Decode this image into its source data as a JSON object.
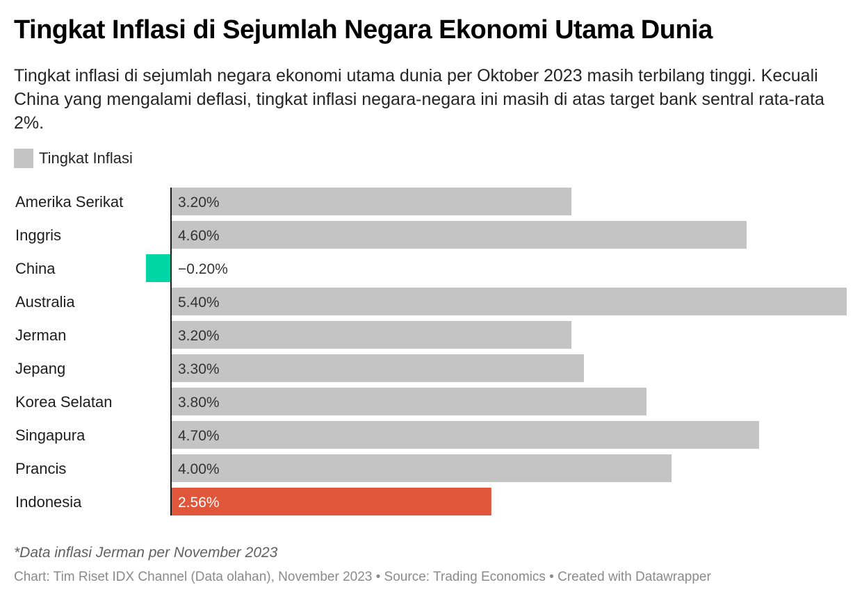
{
  "header": {
    "title": "Tingkat Inflasi di Sejumlah Negara Ekonomi Utama Dunia",
    "description": "Tingkat inflasi di sejumlah negara ekonomi utama dunia per Oktober 2023 masih terbilang tinggi. Kecuali China yang mengalami deflasi, tingkat inflasi negara-negara ini masih di atas target bank sentral rata-rata 2%."
  },
  "legend": {
    "label": "Tingkat Inflasi",
    "color": "#c4c4c4"
  },
  "chart_data": {
    "type": "bar",
    "orientation": "horizontal",
    "title": "Tingkat Inflasi di Sejumlah Negara Ekonomi Utama Dunia",
    "xlabel": "",
    "ylabel": "",
    "xlim": [
      -0.2,
      5.4
    ],
    "grid": false,
    "legend": "top-left",
    "legend_entries": [
      "Tingkat Inflasi"
    ],
    "categories": [
      "Amerika Serikat",
      "Inggris",
      "China",
      "Australia",
      "Jerman",
      "Jepang",
      "Korea Selatan",
      "Singapura",
      "Prancis",
      "Indonesia"
    ],
    "series": [
      {
        "name": "Tingkat Inflasi",
        "values": [
          3.2,
          4.6,
          -0.2,
          5.4,
          3.2,
          3.3,
          3.8,
          4.7,
          4.0,
          2.56
        ],
        "labels": [
          "3.20%",
          "4.60%",
          "−0.20%",
          "5.40%",
          "3.20%",
          "3.30%",
          "3.80%",
          "4.70%",
          "4.00%",
          "2.56%"
        ]
      }
    ],
    "colors": {
      "default": "#c4c4c4",
      "negative": "#00d5a5",
      "highlight": "#e0563a",
      "axis": "#1a1a1a",
      "label_dark": "#333333",
      "label_light": "#ffffff"
    },
    "highlight_category": "Indonesia"
  },
  "notes": {
    "note": "*Data inflasi Jerman per November 2023",
    "footer": "Chart: Tim Riset IDX Channel (Data olahan), November 2023 • Source: Trading Economics • Created with Datawrapper"
  }
}
